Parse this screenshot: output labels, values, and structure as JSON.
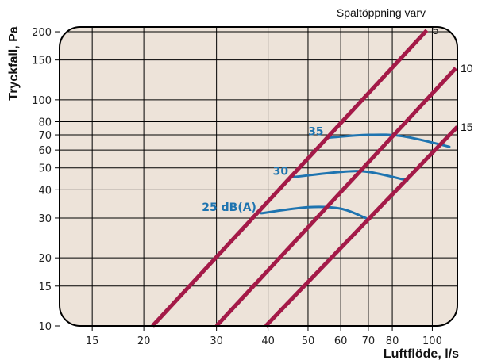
{
  "chart_data": {
    "type": "line",
    "xlabel": "Luftflöde, l/s",
    "ylabel": "Tryckfall, Pa",
    "x_scale": "log",
    "y_scale": "log",
    "xlim": [
      12.5,
      115
    ],
    "ylim": [
      10,
      210
    ],
    "x_ticks": [
      15,
      20,
      30,
      40,
      50,
      60,
      70,
      80,
      100
    ],
    "x_tick_labels": [
      "15",
      "20",
      "30",
      "40",
      "50",
      "60",
      "70",
      "80",
      "100"
    ],
    "y_ticks": [
      10,
      15,
      20,
      30,
      40,
      50,
      60,
      70,
      80,
      100,
      150,
      200
    ],
    "y_tick_labels": [
      "10",
      "15",
      "20",
      "30",
      "40",
      "50",
      "60",
      "70",
      "80",
      "100",
      "150",
      "200"
    ],
    "grid": true,
    "series_title": "Spaltöppning varv",
    "series": [
      {
        "name": "5",
        "x": [
          21,
          97
        ],
        "y": [
          10,
          203
        ]
      },
      {
        "name": "10",
        "x": [
          30,
          114
        ],
        "y": [
          10,
          138
        ]
      },
      {
        "name": "15",
        "x": [
          39.5,
          115
        ],
        "y": [
          10,
          76
        ]
      }
    ],
    "sound_curves": [
      {
        "label": "25 dB(A)",
        "x": [
          38.5,
          50,
          60,
          69
        ],
        "y": [
          31.5,
          33.5,
          33,
          30
        ]
      },
      {
        "label": "30",
        "x": [
          46,
          60,
          70,
          87
        ],
        "y": [
          45.5,
          48,
          48,
          44
        ]
      },
      {
        "label": "35",
        "x": [
          56,
          70,
          85,
          110
        ],
        "y": [
          68,
          70,
          69,
          62
        ]
      }
    ],
    "colors": {
      "plot_background": "#ede3d9",
      "grid": "#000000",
      "series": "#a41a48",
      "sound_curves": "#1e74b0"
    }
  }
}
